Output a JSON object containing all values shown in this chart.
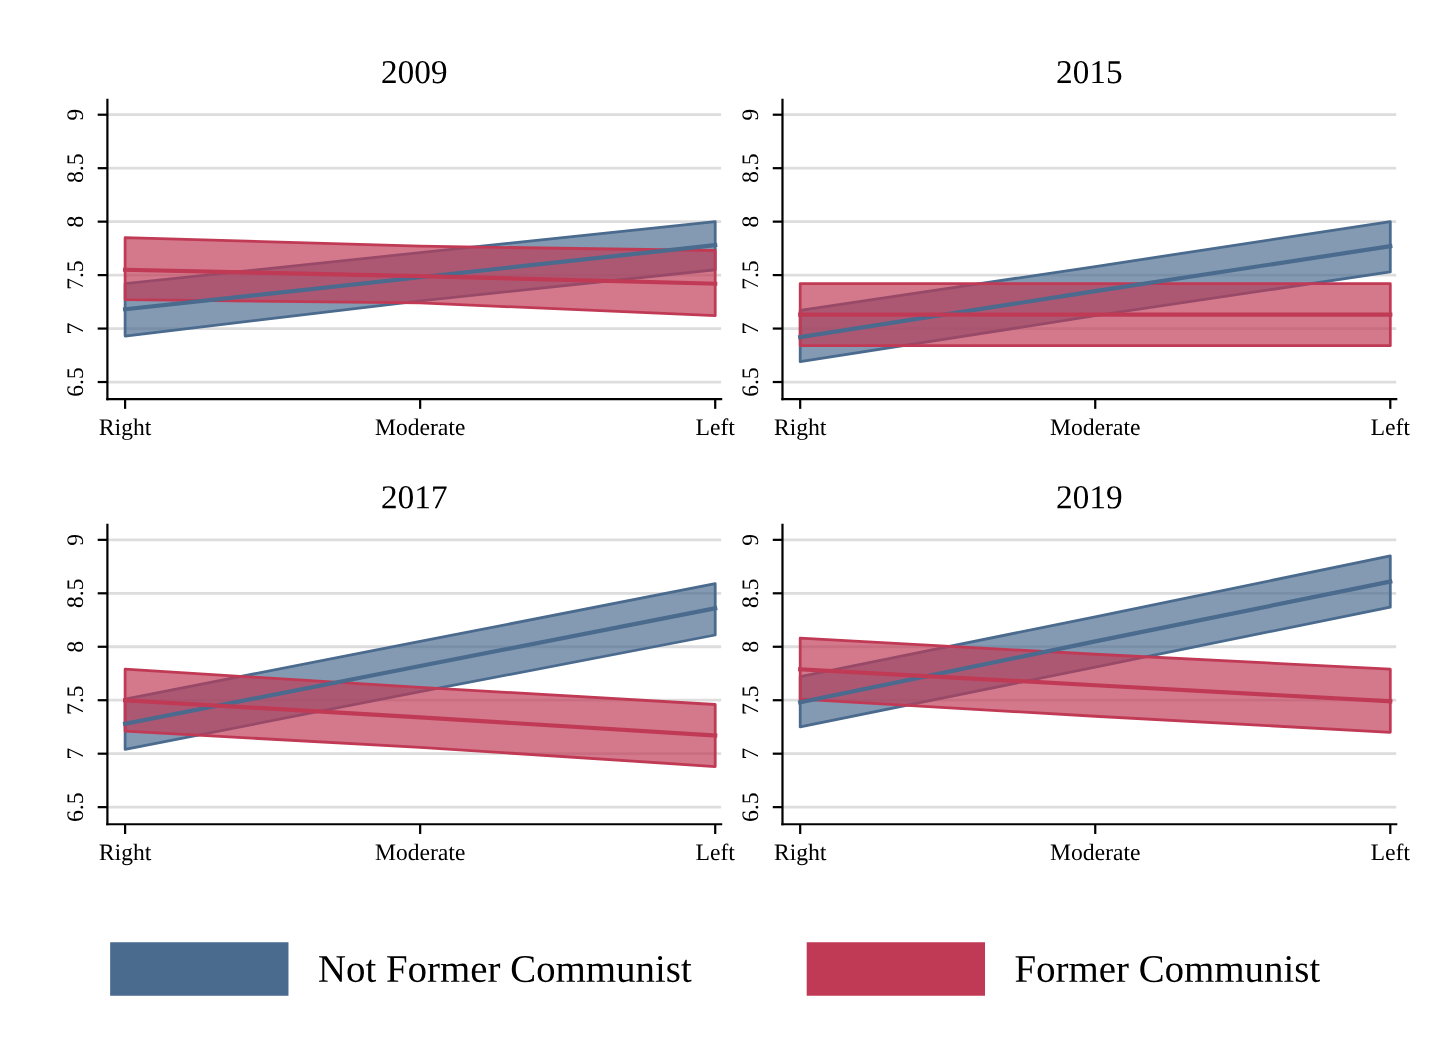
{
  "chart_data": [
    {
      "type": "line",
      "title": "2009",
      "categories": [
        "Right",
        "Moderate",
        "Left"
      ],
      "ylim": [
        6.34,
        9.14
      ],
      "yticks": [
        6.5,
        7,
        7.5,
        8,
        8.5,
        9
      ],
      "grid": "y",
      "legend": "bottom",
      "series": [
        {
          "name": "Not Former Communist",
          "color": "#4a6a8e",
          "values": [
            7.18,
            7.48,
            7.78
          ],
          "lower": [
            6.93,
            7.26,
            7.55
          ],
          "upper": [
            7.42,
            7.71,
            8.0
          ]
        },
        {
          "name": "Former Communist",
          "color": "#c03a55",
          "values": [
            7.55,
            7.49,
            7.42
          ],
          "lower": [
            7.27,
            7.24,
            7.12
          ],
          "upper": [
            7.85,
            7.77,
            7.73
          ]
        }
      ]
    },
    {
      "type": "line",
      "title": "2015",
      "categories": [
        "Right",
        "Moderate",
        "Left"
      ],
      "ylim": [
        6.34,
        9.14
      ],
      "yticks": [
        6.5,
        7,
        7.5,
        8,
        8.5,
        9
      ],
      "grid": "y",
      "series": [
        {
          "color": "#4a6a8e",
          "values": [
            6.92,
            7.35,
            7.77
          ],
          "lower": [
            6.69,
            7.12,
            7.53
          ],
          "upper": [
            7.17,
            7.58,
            8.0
          ]
        },
        {
          "color": "#c03a55",
          "values": [
            7.13,
            7.13,
            7.13
          ],
          "lower": [
            6.84,
            6.84,
            6.84
          ],
          "upper": [
            7.42,
            7.42,
            7.42
          ]
        }
      ]
    },
    {
      "type": "line",
      "title": "2017",
      "categories": [
        "Right",
        "Moderate",
        "Left"
      ],
      "ylim": [
        6.34,
        9.14
      ],
      "yticks": [
        6.5,
        7,
        7.5,
        8,
        8.5,
        9
      ],
      "grid": "y",
      "series": [
        {
          "color": "#4a6a8e",
          "values": [
            7.28,
            7.82,
            8.36
          ],
          "lower": [
            7.04,
            7.58,
            8.11
          ],
          "upper": [
            7.51,
            8.05,
            8.59
          ]
        },
        {
          "color": "#c03a55",
          "values": [
            7.5,
            7.34,
            7.17
          ],
          "lower": [
            7.21,
            7.06,
            6.88
          ],
          "upper": [
            7.79,
            7.62,
            7.46
          ]
        }
      ]
    },
    {
      "type": "line",
      "title": "2019",
      "categories": [
        "Right",
        "Moderate",
        "Left"
      ],
      "ylim": [
        6.34,
        9.14
      ],
      "yticks": [
        6.5,
        7,
        7.5,
        8,
        8.5,
        9
      ],
      "grid": "y",
      "series": [
        {
          "color": "#4a6a8e",
          "values": [
            7.48,
            8.05,
            8.61
          ],
          "lower": [
            7.25,
            7.81,
            8.37
          ],
          "upper": [
            7.72,
            8.28,
            8.85
          ]
        },
        {
          "color": "#c03a55",
          "values": [
            7.79,
            7.64,
            7.49
          ],
          "lower": [
            7.51,
            7.35,
            7.2
          ],
          "upper": [
            8.08,
            7.93,
            7.79
          ]
        }
      ]
    }
  ]
}
